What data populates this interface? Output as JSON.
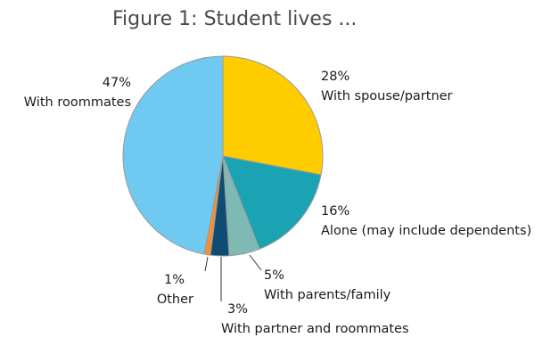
{
  "chart_data": {
    "type": "pie",
    "title": "Figure 1: Student lives ...",
    "slices": [
      {
        "label": "With spouse/partner",
        "value": 28,
        "value_label": "28%",
        "color": "#FFCC00"
      },
      {
        "label": "Alone (may include dependents)",
        "value": 16,
        "value_label": "16%",
        "color": "#1AA3B3"
      },
      {
        "label": "With parents/family",
        "value": 5,
        "value_label": "5%",
        "color": "#7FB9B3"
      },
      {
        "label": "With partner and roommates",
        "value": 3,
        "value_label": "3%",
        "color": "#0E4C73"
      },
      {
        "label": "Other",
        "value": 1,
        "value_label": "1%",
        "color": "#F29033"
      },
      {
        "label": "With roommates",
        "value": 47,
        "value_label": "47%",
        "color": "#6FC9F1"
      }
    ],
    "start": "12 o'clock",
    "direction": "clockwise",
    "outline_color": "#9a9a9a"
  }
}
